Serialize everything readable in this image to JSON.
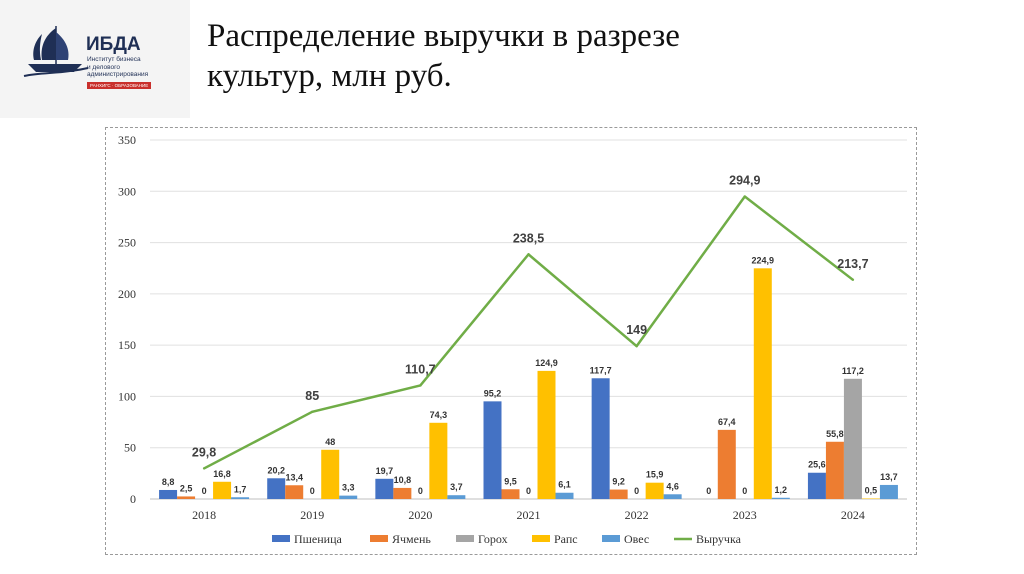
{
  "slide": {
    "title_line1": "Распределение выручки в разрезе",
    "title_line2": "культур, млн руб."
  },
  "logo": {
    "name": "ИБДА",
    "subtitle": "Институт бизнеса\nи делового\nадминистрирования",
    "tagline": "РАНХИГС · ОБРАЗОВАНИЕ"
  },
  "chart_data": {
    "type": "bar",
    "categories": [
      "2018",
      "2019",
      "2020",
      "2021",
      "2022",
      "2023",
      "2024"
    ],
    "ylim": [
      0,
      350
    ],
    "yticks": [
      0,
      50,
      100,
      150,
      200,
      250,
      300,
      350
    ],
    "grid": true,
    "legend_position": "bottom",
    "series": [
      {
        "name": "Пшеница",
        "type": "bar",
        "color": "#4472c4",
        "values": [
          8.8,
          20.2,
          19.7,
          95.2,
          117.7,
          0,
          25.6
        ],
        "labels": [
          "8,8",
          "20,2",
          "19,7",
          "95,2",
          "117,7",
          "0",
          "25,6"
        ]
      },
      {
        "name": "Ячмень",
        "type": "bar",
        "color": "#ed7d31",
        "values": [
          2.5,
          13.4,
          10.8,
          9.5,
          9.2,
          67.4,
          55.8
        ],
        "labels": [
          "2,5",
          "13,4",
          "10,8",
          "9,5",
          "9,2",
          "67,4",
          "55,8"
        ]
      },
      {
        "name": "Горох",
        "type": "bar",
        "color": "#a5a5a5",
        "values": [
          0,
          0,
          0,
          0,
          0,
          0,
          117.2
        ],
        "labels": [
          "0",
          "0",
          "0",
          "0",
          "0",
          "0",
          "117,2"
        ]
      },
      {
        "name": "Рапс",
        "type": "bar",
        "color": "#ffc000",
        "values": [
          16.8,
          48,
          74.3,
          124.9,
          15.9,
          224.9,
          0.5
        ],
        "labels": [
          "16,8",
          "48",
          "74,3",
          "124,9",
          "15,9",
          "224,9",
          "0,5"
        ]
      },
      {
        "name": "Овес",
        "type": "bar",
        "color": "#5b9bd5",
        "values": [
          1.7,
          3.3,
          3.7,
          6.1,
          4.6,
          1.2,
          13.7
        ],
        "labels": [
          "1,7",
          "3,3",
          "3,7",
          "6,1",
          "4,6",
          "1,2",
          "13,7"
        ]
      },
      {
        "name": "Выручка",
        "type": "line",
        "color": "#70ad47",
        "values": [
          29.8,
          85,
          110.7,
          238.5,
          149,
          294.9,
          213.7
        ],
        "labels": [
          "29,8",
          "85",
          "110,7",
          "238,5",
          "149",
          "294,9",
          "213,7"
        ]
      }
    ]
  }
}
